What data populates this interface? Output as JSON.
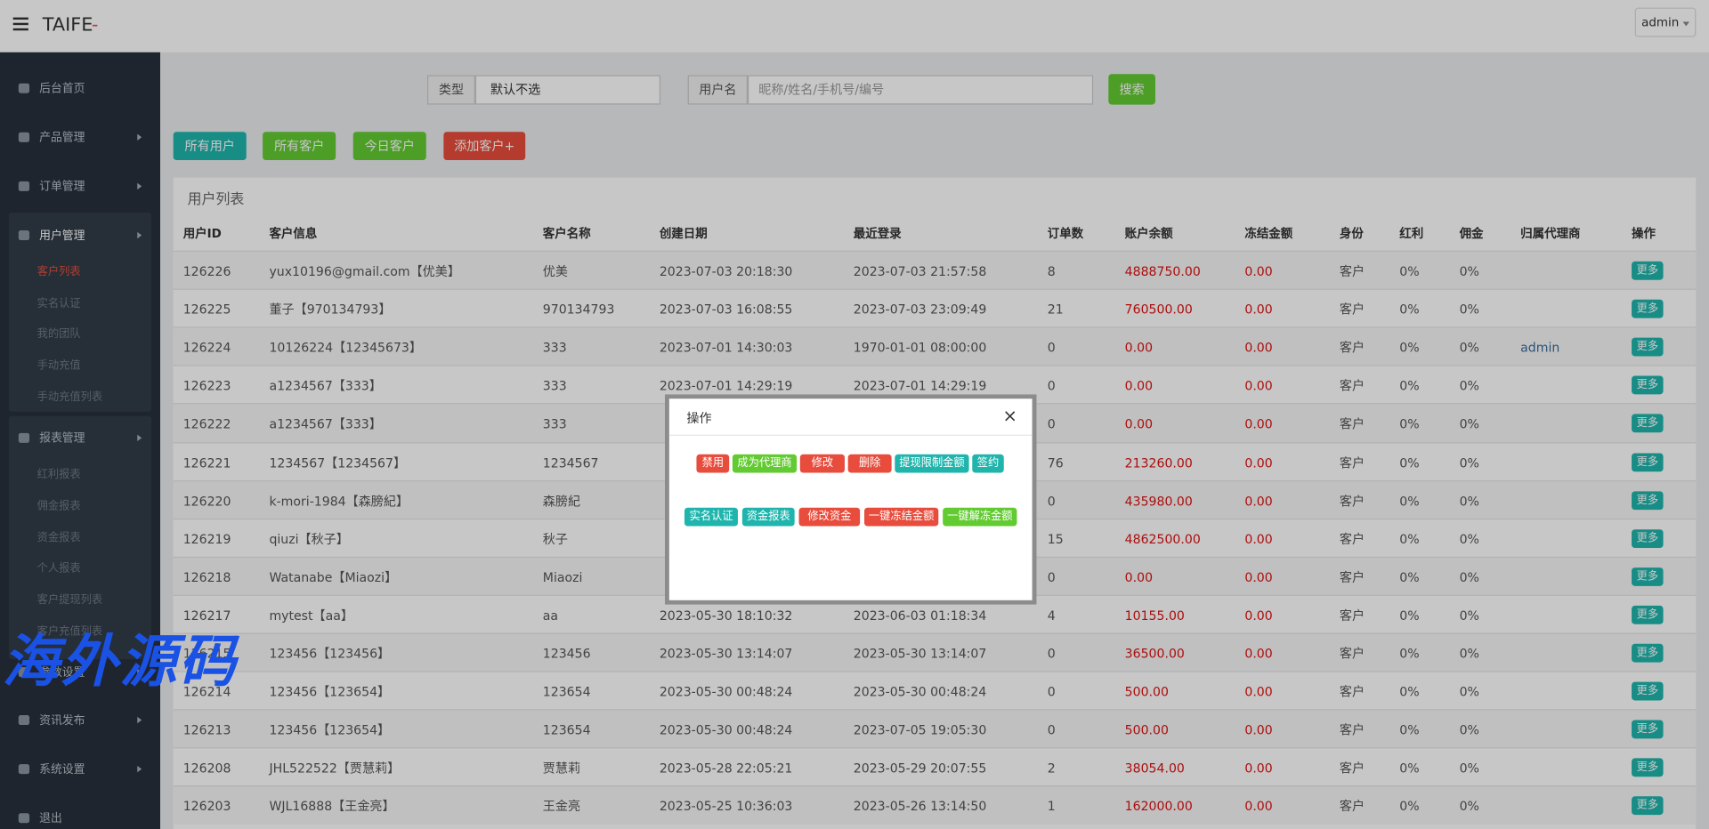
{
  "header": {
    "logo": "TAIFE",
    "logo_suffix": "-",
    "user": "admin"
  },
  "sidebar": {
    "items": [
      {
        "label": "后台首页"
      },
      {
        "label": "产品管理"
      },
      {
        "label": "订单管理"
      },
      {
        "label": "用户管理",
        "children": [
          "客户列表",
          "实名认证",
          "我的团队",
          "手动充值",
          "手动充值列表"
        ]
      },
      {
        "label": "报表管理",
        "children": [
          "红利报表",
          "佣金报表",
          "资金报表",
          "个人报表",
          "客户提现列表",
          "客户充值列表"
        ]
      },
      {
        "label": "参数设置"
      },
      {
        "label": "资讯发布"
      },
      {
        "label": "系统设置"
      },
      {
        "label": "退出"
      }
    ]
  },
  "filters": {
    "type_label": "类型",
    "type_value": "默认不选",
    "user_label": "用户名",
    "user_placeholder": "昵称/姓名/手机号/编号",
    "search": "搜索"
  },
  "actions": [
    "所有用户",
    "所有客户",
    "今日客户",
    "添加客户+"
  ],
  "table": {
    "title": "用户列表",
    "columns": [
      "用户ID",
      "客户信息",
      "客户名称",
      "创建日期",
      "最近登录",
      "订单数",
      "账户余额",
      "冻结金额",
      "身份",
      "红利",
      "佣金",
      "归属代理商",
      "操作"
    ],
    "rows": [
      [
        "126226",
        "yux10196@gmail.com【优美】",
        "优美",
        "2023-07-03 20:18:30",
        "2023-07-03 21:57:58",
        "8",
        "4888750.00",
        "0.00",
        "客户",
        "0%",
        "0%",
        null,
        "更多"
      ],
      [
        "126225",
        "董子【970134793】",
        "970134793",
        "2023-07-03 16:08:55",
        "2023-07-03 23:09:49",
        "21",
        "760500.00",
        "0.00",
        "客户",
        "0%",
        "0%",
        null,
        "更多"
      ],
      [
        "126224",
        "10126224【12345673】",
        "333",
        "2023-07-01 14:30:03",
        "1970-01-01 08:00:00",
        "0",
        "0.00",
        "0.00",
        "客户",
        "0%",
        "0%",
        "admin",
        "更多"
      ],
      [
        "126223",
        "a1234567【333】",
        "333",
        "2023-07-01 14:29:19",
        "2023-07-01 14:29:19",
        "0",
        "0.00",
        "0.00",
        "客户",
        "0%",
        "0%",
        null,
        "更多"
      ],
      [
        "126222",
        "a1234567【333】",
        "333",
        null,
        null,
        "0",
        "0.00",
        "0.00",
        "客户",
        "0%",
        "0%",
        null,
        "更多"
      ],
      [
        "126221",
        "1234567【1234567】",
        "1234567",
        null,
        null,
        "76",
        "213260.00",
        "0.00",
        "客户",
        "0%",
        "0%",
        null,
        "更多"
      ],
      [
        "126220",
        "k-mori-1984【森膀紀】",
        "森膀紀",
        null,
        null,
        "0",
        "435980.00",
        "0.00",
        "客户",
        "0%",
        "0%",
        null,
        "更多"
      ],
      [
        "126219",
        "qiuzi【秋子】",
        "秋子",
        null,
        null,
        "15",
        "4862500.00",
        "0.00",
        "客户",
        "0%",
        "0%",
        null,
        "更多"
      ],
      [
        "126218",
        "Watanabe【Miaozi】",
        "Miaozi",
        null,
        null,
        "0",
        "0.00",
        "0.00",
        "客户",
        "0%",
        "0%",
        null,
        "更多"
      ],
      [
        "126217",
        "mytest【aa】",
        "aa",
        "2023-05-30 18:10:32",
        "2023-06-03 01:18:34",
        "4",
        "10155.00",
        "0.00",
        "客户",
        "0%",
        "0%",
        null,
        "更多"
      ],
      [
        "126215",
        "123456【123456】",
        "123456",
        "2023-05-30 13:14:07",
        "2023-05-30 13:14:07",
        "0",
        "36500.00",
        "0.00",
        "客户",
        "0%",
        "0%",
        null,
        "更多"
      ],
      [
        "126214",
        "123456【123654】",
        "123654",
        "2023-05-30 00:48:24",
        "2023-05-30 00:48:24",
        "0",
        "500.00",
        "0.00",
        "客户",
        "0%",
        "0%",
        null,
        "更多"
      ],
      [
        "126213",
        "123456【123654】",
        "123654",
        "2023-05-30 00:48:24",
        "2023-07-05 19:05:30",
        "0",
        "500.00",
        "0.00",
        "客户",
        "0%",
        "0%",
        null,
        "更多"
      ],
      [
        "126208",
        "JHL522522【贾慧莉】",
        "贾慧莉",
        "2023-05-28 22:05:21",
        "2023-05-29 20:07:55",
        "2",
        "38054.00",
        "0.00",
        "客户",
        "0%",
        "0%",
        null,
        "更多"
      ],
      [
        "126203",
        "WJL16888【王金亮】",
        "王金亮",
        "2023-05-25 10:36:03",
        "2023-05-26 13:14:50",
        "1",
        "162000.00",
        "0.00",
        "客户",
        "0%",
        "0%",
        null,
        "更多"
      ]
    ]
  },
  "modal": {
    "title": "操作",
    "buttons": [
      [
        "禁用",
        "成为代理商",
        "修改",
        "删除",
        "提现限制金额",
        "签约"
      ],
      [
        "实名认证",
        "资金报表",
        "修改资金",
        "一键冻结金额",
        "一键解冻金额"
      ]
    ]
  },
  "watermark": "海外源码"
}
